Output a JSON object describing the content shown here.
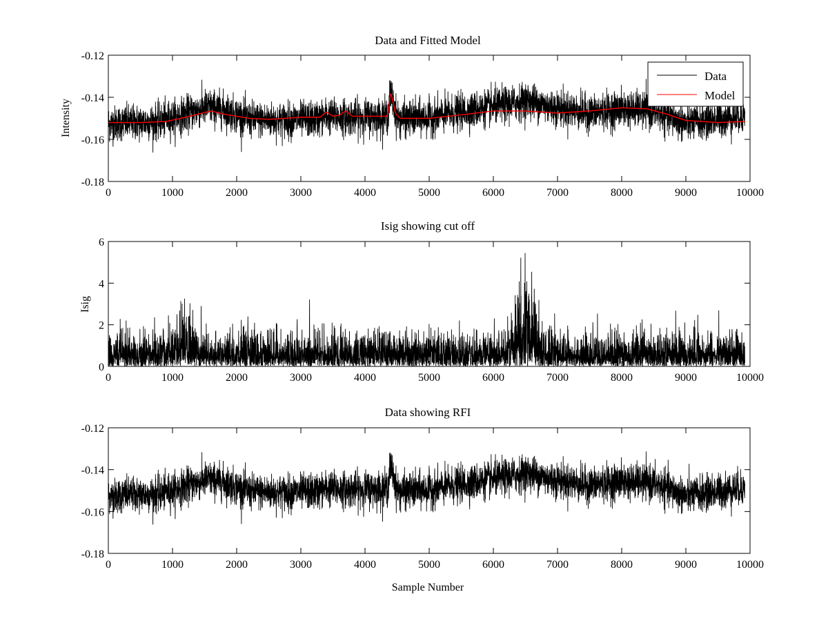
{
  "figure": {
    "background": "#ffffff",
    "colors": {
      "data": "#000000",
      "model": "#ff0000",
      "axis": "#000000"
    }
  },
  "chart_data": [
    {
      "type": "line",
      "title": "Data and Fitted Model",
      "xlabel": "",
      "ylabel": "Intensity",
      "xlim": [
        0,
        10000
      ],
      "ylim": [
        -0.18,
        -0.12
      ],
      "xticks": [
        0,
        1000,
        2000,
        3000,
        4000,
        5000,
        6000,
        7000,
        8000,
        9000,
        10000
      ],
      "xtick_labels": [
        "0",
        "1000",
        "2000",
        "3000",
        "4000",
        "5000",
        "6000",
        "7000",
        "8000",
        "9000",
        "10000"
      ],
      "yticks": [
        -0.12,
        -0.14,
        -0.16,
        -0.18
      ],
      "ytick_labels": [
        "-0.12",
        "-0.14",
        "-0.16",
        "-0.18"
      ],
      "legend": {
        "position": "top-right",
        "entries": [
          "Data",
          "Model"
        ]
      },
      "series": [
        {
          "name": "Data",
          "color": "#000000",
          "x_end": 9920,
          "noise": 0.0042,
          "baseline": [
            [
              0,
              -0.1525
            ],
            [
              800,
              -0.1515
            ],
            [
              1200,
              -0.148
            ],
            [
              1550,
              -0.1445
            ],
            [
              1800,
              -0.146
            ],
            [
              2200,
              -0.1505
            ],
            [
              2600,
              -0.151
            ],
            [
              3200,
              -0.1505
            ],
            [
              3400,
              -0.149
            ],
            [
              3800,
              -0.1495
            ],
            [
              4350,
              -0.149
            ],
            [
              4400,
              -0.1375
            ],
            [
              4480,
              -0.148
            ],
            [
              4520,
              -0.1505
            ],
            [
              5000,
              -0.1495
            ],
            [
              5600,
              -0.1465
            ],
            [
              6200,
              -0.1435
            ],
            [
              6550,
              -0.1415
            ],
            [
              6900,
              -0.1445
            ],
            [
              7500,
              -0.1475
            ],
            [
              8000,
              -0.1455
            ],
            [
              8500,
              -0.1465
            ],
            [
              9000,
              -0.1525
            ],
            [
              9500,
              -0.1505
            ],
            [
              9920,
              -0.1485
            ]
          ]
        },
        {
          "name": "Model",
          "color": "#ff0000",
          "x_end": 9920,
          "points": [
            [
              0,
              -0.152
            ],
            [
              500,
              -0.152
            ],
            [
              900,
              -0.1515
            ],
            [
              1200,
              -0.1495
            ],
            [
              1400,
              -0.148
            ],
            [
              1600,
              -0.1465
            ],
            [
              1800,
              -0.148
            ],
            [
              2200,
              -0.15
            ],
            [
              2500,
              -0.1505
            ],
            [
              3000,
              -0.1495
            ],
            [
              3300,
              -0.1495
            ],
            [
              3400,
              -0.147
            ],
            [
              3500,
              -0.149
            ],
            [
              3600,
              -0.1485
            ],
            [
              3700,
              -0.1465
            ],
            [
              3800,
              -0.149
            ],
            [
              4000,
              -0.149
            ],
            [
              4350,
              -0.149
            ],
            [
              4400,
              -0.1375
            ],
            [
              4480,
              -0.148
            ],
            [
              4550,
              -0.15
            ],
            [
              5000,
              -0.15
            ],
            [
              5600,
              -0.148
            ],
            [
              6000,
              -0.1465
            ],
            [
              6500,
              -0.1465
            ],
            [
              7000,
              -0.1475
            ],
            [
              7500,
              -0.1465
            ],
            [
              8000,
              -0.145
            ],
            [
              8400,
              -0.1455
            ],
            [
              8700,
              -0.148
            ],
            [
              9000,
              -0.151
            ],
            [
              9500,
              -0.152
            ],
            [
              9920,
              -0.1515
            ]
          ]
        }
      ]
    },
    {
      "type": "line",
      "title": "Isig showing cut off",
      "xlabel": "",
      "ylabel": "Isig",
      "xlim": [
        0,
        10000
      ],
      "ylim": [
        0,
        6
      ],
      "xticks": [
        0,
        1000,
        2000,
        3000,
        4000,
        5000,
        6000,
        7000,
        8000,
        9000,
        10000
      ],
      "xtick_labels": [
        "0",
        "1000",
        "2000",
        "3000",
        "4000",
        "5000",
        "6000",
        "7000",
        "8000",
        "9000",
        "10000"
      ],
      "yticks": [
        0,
        2,
        4,
        6
      ],
      "ytick_labels": [
        "0",
        "2",
        "4",
        "6"
      ],
      "series": [
        {
          "name": "Isig",
          "color": "#000000",
          "x_end": 9920,
          "scale": 0.75,
          "bumps": [
            [
              1200,
              0.45
            ],
            [
              6500,
              1.2
            ]
          ]
        }
      ]
    },
    {
      "type": "line",
      "title": "Data showing RFI",
      "xlabel": "Sample Number",
      "ylabel": "",
      "xlim": [
        0,
        10000
      ],
      "ylim": [
        -0.18,
        -0.12
      ],
      "xticks": [
        0,
        1000,
        2000,
        3000,
        4000,
        5000,
        6000,
        7000,
        8000,
        9000,
        10000
      ],
      "xtick_labels": [
        "0",
        "1000",
        "2000",
        "3000",
        "4000",
        "5000",
        "6000",
        "7000",
        "8000",
        "9000",
        "10000"
      ],
      "yticks": [
        -0.12,
        -0.14,
        -0.16,
        -0.18
      ],
      "ytick_labels": [
        "-0.12",
        "-0.14",
        "-0.16",
        "-0.18"
      ],
      "series": [
        {
          "name": "Data",
          "color": "#000000",
          "x_end": 9920,
          "noise": 0.0042,
          "same_as": "panel1-data"
        }
      ]
    }
  ]
}
